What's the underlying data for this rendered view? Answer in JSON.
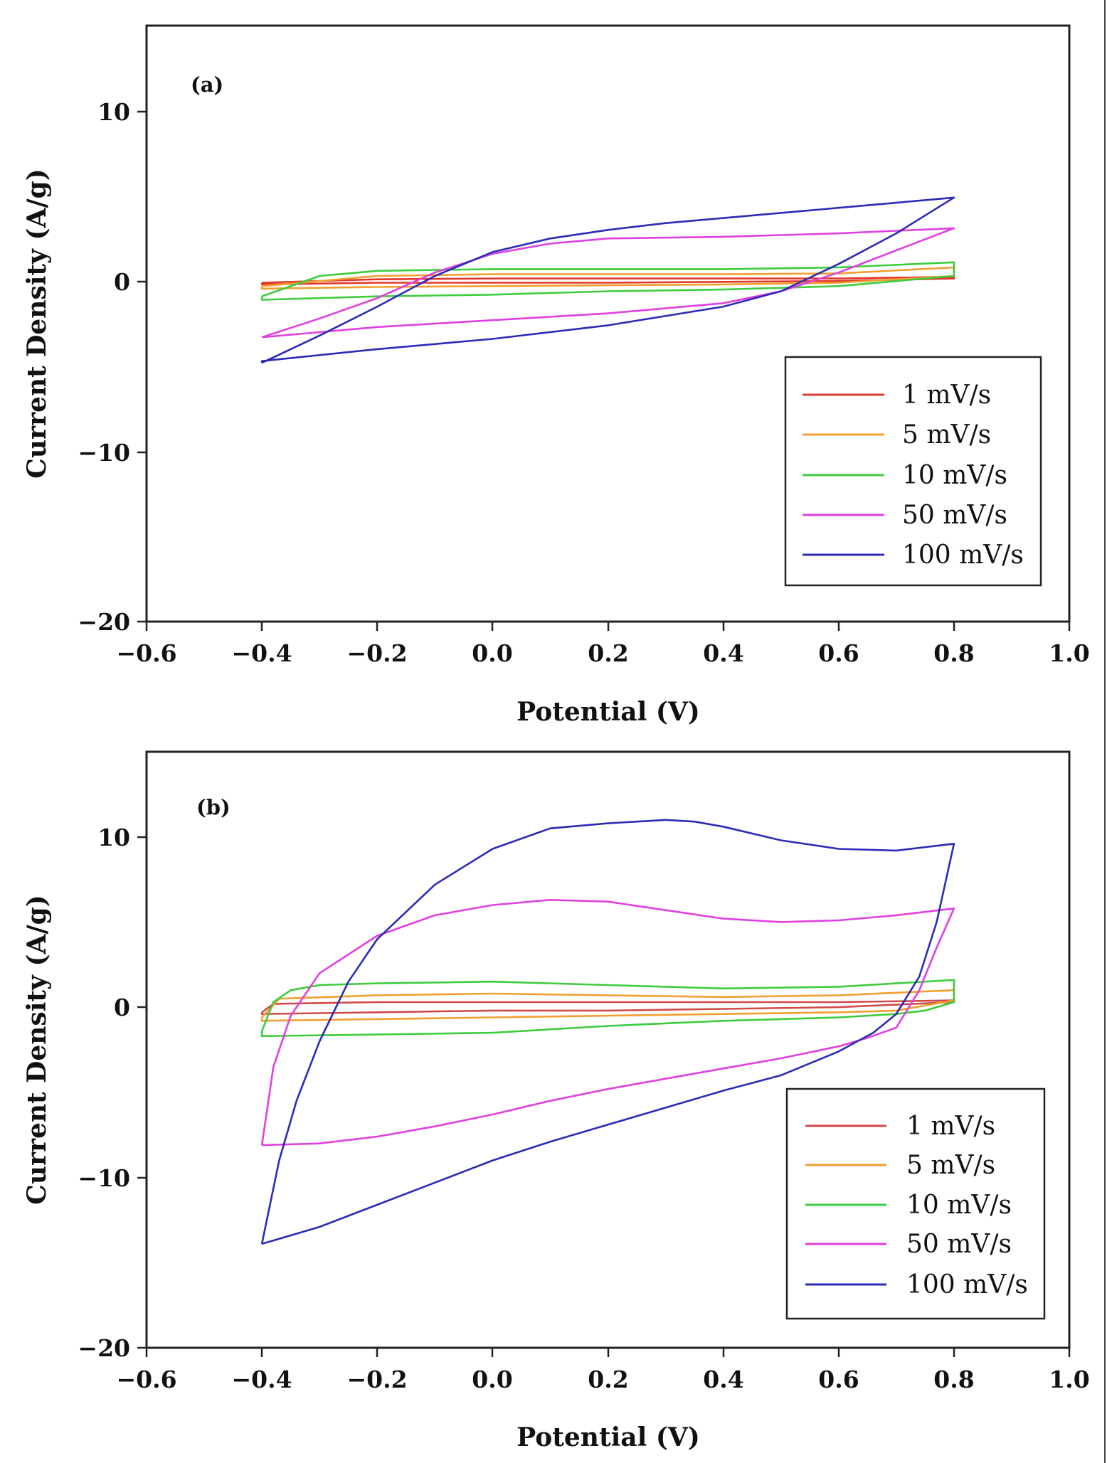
{
  "chart_data": [
    {
      "type": "line",
      "panel_label": "(a)",
      "xlabel": "Potential (V)",
      "ylabel": "Current Density (A/g)",
      "xlim": [
        -0.6,
        1.0
      ],
      "ylim": [
        -20,
        15
      ],
      "xticks": [
        -0.6,
        -0.4,
        -0.2,
        0.0,
        0.2,
        0.4,
        0.6,
        0.8,
        1.0
      ],
      "xtick_labels": [
        "−0.6",
        "−0.4",
        "−0.2",
        "0.0",
        "0.2",
        "0.4",
        "0.6",
        "0.8",
        "1.0"
      ],
      "yticks": [
        10,
        0,
        -10,
        -20
      ],
      "ytick_labels": [
        "10",
        "0",
        "−10",
        "−20"
      ],
      "legend_position": "lower-right",
      "series": [
        {
          "name": "1 mV/s",
          "color": "#e0392b",
          "x": [
            -0.4,
            -0.2,
            0.0,
            0.2,
            0.4,
            0.6,
            0.8,
            0.8,
            0.6,
            0.4,
            0.2,
            0.0,
            -0.2,
            -0.4,
            -0.4
          ],
          "y": [
            -0.1,
            0.1,
            0.15,
            0.15,
            0.15,
            0.15,
            0.25,
            0.15,
            0.0,
            -0.05,
            -0.1,
            -0.1,
            -0.1,
            -0.2,
            -0.1
          ]
        },
        {
          "name": "5 mV/s",
          "color": "#f0a030",
          "x": [
            -0.4,
            -0.2,
            0.0,
            0.2,
            0.4,
            0.6,
            0.8,
            0.8,
            0.6,
            0.4,
            0.2,
            0.0,
            -0.2,
            -0.4,
            -0.4
          ],
          "y": [
            -0.3,
            0.3,
            0.4,
            0.4,
            0.4,
            0.45,
            0.8,
            0.3,
            -0.1,
            -0.2,
            -0.25,
            -0.3,
            -0.35,
            -0.45,
            -0.3
          ]
        },
        {
          "name": "10 mV/s",
          "color": "#3dcc3d",
          "x": [
            -0.4,
            -0.3,
            -0.2,
            0.0,
            0.2,
            0.4,
            0.6,
            0.8,
            0.8,
            0.6,
            0.4,
            0.2,
            0.0,
            -0.2,
            -0.4,
            -0.4
          ],
          "y": [
            -0.9,
            0.3,
            0.6,
            0.7,
            0.7,
            0.7,
            0.8,
            1.1,
            0.3,
            -0.3,
            -0.5,
            -0.6,
            -0.8,
            -0.9,
            -1.1,
            -0.9
          ]
        },
        {
          "name": "50 mV/s",
          "color": "#e040e0",
          "x": [
            -0.4,
            -0.3,
            -0.2,
            -0.1,
            0.0,
            0.1,
            0.2,
            0.4,
            0.6,
            0.8,
            0.8,
            0.7,
            0.6,
            0.5,
            0.4,
            0.2,
            0.0,
            -0.2,
            -0.3,
            -0.4,
            -0.4
          ],
          "y": [
            -3.3,
            -2.2,
            -1.0,
            0.5,
            1.6,
            2.2,
            2.5,
            2.6,
            2.8,
            3.1,
            3.1,
            1.8,
            0.5,
            -0.6,
            -1.3,
            -1.9,
            -2.3,
            -2.7,
            -3.0,
            -3.3,
            -3.3
          ]
        },
        {
          "name": "100 mV/s",
          "color": "#2b2bb8",
          "x": [
            -0.4,
            -0.3,
            -0.2,
            -0.1,
            0.0,
            0.1,
            0.2,
            0.3,
            0.4,
            0.6,
            0.8,
            0.8,
            0.7,
            0.6,
            0.5,
            0.4,
            0.2,
            0.0,
            -0.2,
            -0.4,
            -0.4
          ],
          "y": [
            -4.8,
            -3.2,
            -1.5,
            0.3,
            1.7,
            2.5,
            3.0,
            3.4,
            3.7,
            4.3,
            4.9,
            4.9,
            2.8,
            1.0,
            -0.6,
            -1.5,
            -2.6,
            -3.4,
            -4.0,
            -4.7,
            -4.8
          ]
        }
      ]
    },
    {
      "type": "line",
      "panel_label": "(b)",
      "xlabel": "Potential (V)",
      "ylabel": "Current Density (A/g)",
      "xlim": [
        -0.6,
        1.0
      ],
      "ylim": [
        -20,
        15
      ],
      "xticks": [
        -0.6,
        -0.4,
        -0.2,
        0.0,
        0.2,
        0.4,
        0.6,
        0.8,
        1.0
      ],
      "xtick_labels": [
        "−0.6",
        "−0.4",
        "−0.2",
        "0.0",
        "0.2",
        "0.4",
        "0.6",
        "0.8",
        "1.0"
      ],
      "yticks": [
        10,
        0,
        -10,
        -20
      ],
      "ytick_labels": [
        "10",
        "0",
        "−10",
        "−20"
      ],
      "legend_position": "lower-right",
      "series": [
        {
          "name": "1 mV/s",
          "color": "#d04a4a",
          "x": [
            -0.4,
            -0.38,
            -0.2,
            0.0,
            0.2,
            0.4,
            0.6,
            0.8,
            0.8,
            0.6,
            0.4,
            0.2,
            0.0,
            -0.2,
            -0.4,
            -0.4
          ],
          "y": [
            -0.3,
            0.2,
            0.3,
            0.3,
            0.3,
            0.3,
            0.3,
            0.4,
            0.3,
            0.0,
            -0.1,
            -0.2,
            -0.2,
            -0.3,
            -0.4,
            -0.3
          ]
        },
        {
          "name": "5 mV/s",
          "color": "#f0a030",
          "x": [
            -0.4,
            -0.37,
            -0.2,
            0.0,
            0.2,
            0.4,
            0.6,
            0.8,
            0.8,
            0.7,
            0.6,
            0.4,
            0.2,
            0.0,
            -0.2,
            -0.4,
            -0.4
          ],
          "y": [
            -0.6,
            0.5,
            0.7,
            0.8,
            0.7,
            0.6,
            0.7,
            1.0,
            0.4,
            -0.2,
            -0.3,
            -0.4,
            -0.5,
            -0.6,
            -0.7,
            -0.8,
            -0.6
          ]
        },
        {
          "name": "10 mV/s",
          "color": "#3dcc3d",
          "x": [
            -0.4,
            -0.38,
            -0.35,
            -0.3,
            -0.2,
            0.0,
            0.2,
            0.4,
            0.6,
            0.8,
            0.8,
            0.75,
            0.7,
            0.6,
            0.4,
            0.2,
            0.0,
            -0.2,
            -0.4,
            -0.4
          ],
          "y": [
            -1.4,
            0.3,
            1.0,
            1.3,
            1.4,
            1.5,
            1.3,
            1.1,
            1.2,
            1.6,
            0.3,
            -0.2,
            -0.4,
            -0.6,
            -0.8,
            -1.1,
            -1.5,
            -1.6,
            -1.7,
            -1.4
          ]
        },
        {
          "name": "50 mV/s",
          "color": "#e040e0",
          "x": [
            -0.4,
            -0.38,
            -0.35,
            -0.3,
            -0.2,
            -0.1,
            0.0,
            0.1,
            0.2,
            0.3,
            0.4,
            0.5,
            0.6,
            0.7,
            0.8,
            0.8,
            0.77,
            0.74,
            0.7,
            0.65,
            0.6,
            0.5,
            0.4,
            0.3,
            0.2,
            0.1,
            0.0,
            -0.1,
            -0.2,
            -0.3,
            -0.4,
            -0.4
          ],
          "y": [
            -8.1,
            -3.5,
            -0.5,
            2.0,
            4.2,
            5.4,
            6.0,
            6.3,
            6.2,
            5.7,
            5.2,
            5.0,
            5.1,
            5.4,
            5.8,
            5.8,
            3.5,
            1.0,
            -1.2,
            -1.8,
            -2.3,
            -3.0,
            -3.6,
            -4.2,
            -4.8,
            -5.5,
            -6.3,
            -7.0,
            -7.6,
            -8.0,
            -8.1,
            -8.1
          ]
        },
        {
          "name": "100 mV/s",
          "color": "#2b2bb8",
          "x": [
            -0.4,
            -0.37,
            -0.34,
            -0.3,
            -0.25,
            -0.2,
            -0.1,
            0.0,
            0.1,
            0.2,
            0.3,
            0.35,
            0.4,
            0.5,
            0.6,
            0.7,
            0.8,
            0.8,
            0.77,
            0.74,
            0.7,
            0.66,
            0.6,
            0.5,
            0.4,
            0.3,
            0.2,
            0.1,
            0.0,
            -0.1,
            -0.2,
            -0.3,
            -0.4,
            -0.4
          ],
          "y": [
            -13.9,
            -9.0,
            -5.5,
            -2.0,
            1.5,
            4.0,
            7.2,
            9.3,
            10.5,
            10.8,
            11.0,
            10.9,
            10.6,
            9.8,
            9.3,
            9.2,
            9.6,
            9.6,
            5.0,
            1.8,
            -0.4,
            -1.5,
            -2.6,
            -4.0,
            -4.9,
            -5.9,
            -6.9,
            -7.9,
            -9.0,
            -10.3,
            -11.6,
            -12.9,
            -13.9,
            -13.9
          ]
        }
      ]
    }
  ]
}
